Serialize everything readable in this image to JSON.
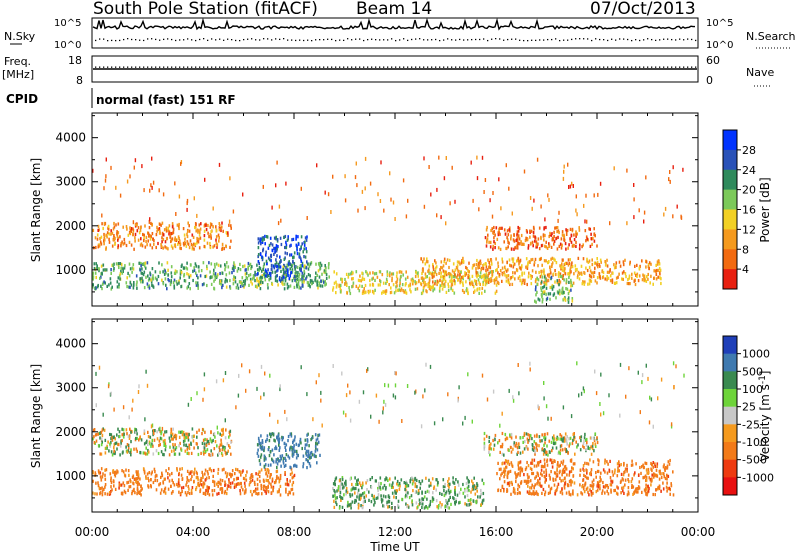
{
  "header": {
    "station": "South Pole Station (fitACF)",
    "beam": "Beam 14",
    "date": "07/Oct/2013"
  },
  "noise_panel": {
    "left_label": "N.Sky",
    "right_label": "N.Search",
    "tick_top": "10^5",
    "tick_bottom": "10^0"
  },
  "freq_panel": {
    "left_label_1": "Freq.",
    "left_label_2": "[MHz]",
    "right_label": "Nave",
    "left_ticks": [
      "18",
      "8"
    ],
    "right_ticks": [
      "60",
      "0"
    ]
  },
  "cpid_panel": {
    "label": "CPID",
    "mode_text": "normal (fast) 151 RF"
  },
  "x_axis": {
    "label": "Time UT",
    "ticks": [
      "00:00",
      "04:00",
      "08:00",
      "12:00",
      "16:00",
      "20:00",
      "00:00"
    ]
  },
  "chart_data": [
    {
      "type": "heatmap",
      "parameter": "Power",
      "ylabel": "Slant Range [km]",
      "yticks": [
        "1000",
        "2000",
        "3000",
        "4000"
      ],
      "ylim": [
        180,
        4560
      ],
      "colorbar_label": "Power [dB]",
      "colorbar_ticks": [
        "4",
        "8",
        "12",
        "16",
        "20",
        "24",
        "28"
      ],
      "colorbar_colors": [
        "#0033ff",
        "#2a52b8",
        "#2f8a5c",
        "#7cc95a",
        "#f2d024",
        "#f59a1e",
        "#f26a10",
        "#e82010"
      ],
      "xlim_hours": [
        0,
        24
      ],
      "scatter_regions": [
        {
          "t_start": 0.0,
          "t_end": 9.4,
          "range_start_km": 600,
          "range_end_km": 1200,
          "typical_dB": 20
        },
        {
          "t_start": 0.0,
          "t_end": 5.5,
          "range_start_km": 1500,
          "range_end_km": 2100,
          "typical_dB": 8
        },
        {
          "t_start": 6.5,
          "t_end": 8.5,
          "range_start_km": 800,
          "range_end_km": 1800,
          "typical_dB": 26
        },
        {
          "t_start": 9.5,
          "t_end": 16.0,
          "range_start_km": 500,
          "range_end_km": 1000,
          "typical_dB": 14
        },
        {
          "t_start": 13.0,
          "t_end": 22.5,
          "range_start_km": 700,
          "range_end_km": 1300,
          "typical_dB": 10
        },
        {
          "t_start": 15.5,
          "t_end": 20.0,
          "range_start_km": 1500,
          "range_end_km": 2000,
          "typical_dB": 6
        },
        {
          "t_start": 17.5,
          "t_end": 19.0,
          "range_start_km": 300,
          "range_end_km": 900,
          "typical_dB": 20
        }
      ]
    },
    {
      "type": "heatmap",
      "parameter": "Velocity",
      "ylabel": "Slant Range [km]",
      "yticks": [
        "1000",
        "2000",
        "3000",
        "4000"
      ],
      "ylim": [
        180,
        4560
      ],
      "colorbar_label": "Velocity [m s^-1]",
      "colorbar_ticks": [
        "1000",
        "500",
        "100",
        "25",
        "-25",
        "-100",
        "-500",
        "-1000"
      ],
      "colorbar_colors": [
        "#1f3fb8",
        "#3f7ab0",
        "#3a8a50",
        "#6ed43a",
        "#c8c8c8",
        "#f59a1e",
        "#f27a18",
        "#ee3a10",
        "#e81010"
      ],
      "xlim_hours": [
        0,
        24
      ],
      "scatter_regions": [
        {
          "t_start": 0.0,
          "t_end": 8.0,
          "range_start_km": 600,
          "range_end_km": 1200,
          "typical_velocity": -300
        },
        {
          "t_start": 0.0,
          "t_end": 5.5,
          "range_start_km": 1500,
          "range_end_km": 2100,
          "typical_velocity": 0
        },
        {
          "t_start": 6.5,
          "t_end": 9.0,
          "range_start_km": 1200,
          "range_end_km": 2000,
          "typical_velocity": 600
        },
        {
          "t_start": 9.5,
          "t_end": 15.5,
          "range_start_km": 300,
          "range_end_km": 1000,
          "typical_velocity": 150
        },
        {
          "t_start": 15.5,
          "t_end": 20.0,
          "range_start_km": 1500,
          "range_end_km": 2000,
          "typical_velocity": 0
        },
        {
          "t_start": 16.0,
          "t_end": 23.0,
          "range_start_km": 600,
          "range_end_km": 1400,
          "typical_velocity": -300
        }
      ]
    }
  ]
}
